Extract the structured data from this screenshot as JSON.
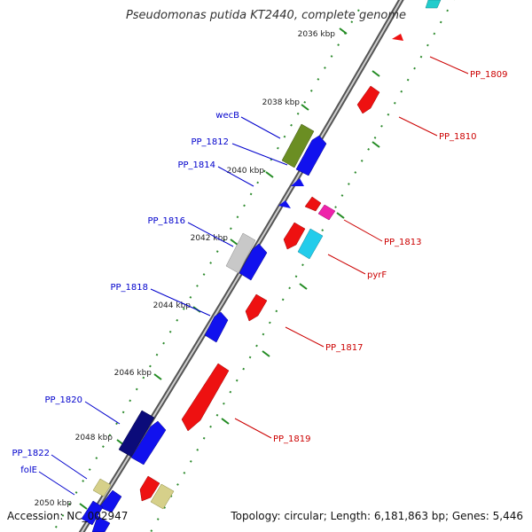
{
  "title": "Pseudomonas putida KT2440, complete genome",
  "accession": "Accession: NC_002947",
  "topology": "Topology: circular; Length: 6,181,863 bp; Genes: 5,446",
  "colors": {
    "forward_label": "#0000cc",
    "reverse_label": "#cc0000",
    "tick": "#228b22",
    "backbone": "#888888"
  },
  "ticks": [
    "2036 kbp",
    "2038 kbp",
    "2040 kbp",
    "2042 kbp",
    "2044 kbp",
    "2046 kbp",
    "2048 kbp",
    "2050 kbp"
  ],
  "forward_genes": [
    "wecB",
    "PP_1812",
    "PP_1814",
    "PP_1816",
    "PP_1818",
    "PP_1820",
    "PP_1822",
    "folE"
  ],
  "reverse_genes": [
    "PP_1809",
    "PP_1810",
    "PP_1813",
    "pyrF",
    "PP_1817",
    "PP_1819"
  ]
}
